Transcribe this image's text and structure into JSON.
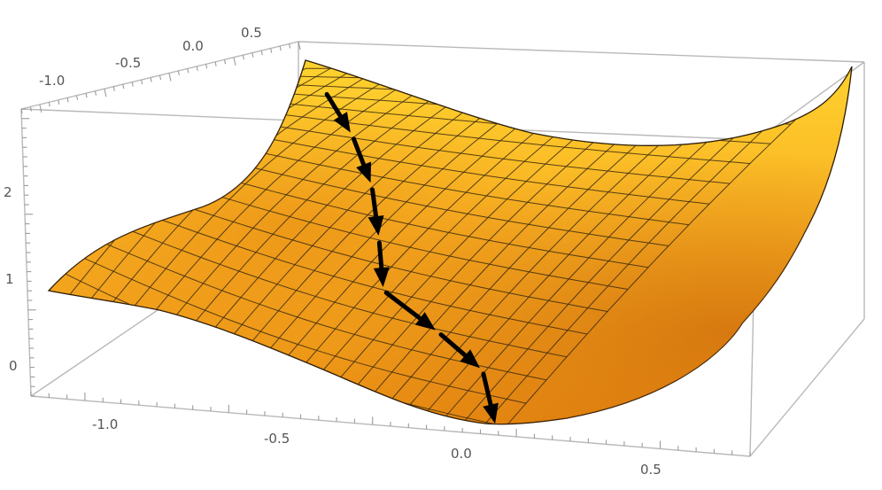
{
  "chart_data": {
    "type": "surface",
    "title": "",
    "xlabel": "",
    "ylabel": "",
    "zlabel": "",
    "x_ticks": [
      "-1.0",
      "-0.5",
      "0.0",
      "0.5"
    ],
    "y_ticks": [
      "-1.0",
      "-0.5",
      "0.0",
      "0.5"
    ],
    "z_ticks": [
      "0",
      "1",
      "2"
    ],
    "surface_color": "#f7a01e",
    "surface_highlight_color": "#ffd22e",
    "mesh_color": "#3a2a10",
    "box_color": "#b9b9b9",
    "arrow_color": "#000000",
    "descent_path": {
      "description_points": 7,
      "steps": [
        {
          "x": -0.72,
          "y": 0.45,
          "z": 2.85
        },
        {
          "x": -0.58,
          "y": 0.38,
          "z": 2.35
        },
        {
          "x": -0.47,
          "y": 0.33,
          "z": 1.95
        },
        {
          "x": -0.38,
          "y": 0.28,
          "z": 1.55
        },
        {
          "x": -0.28,
          "y": 0.18,
          "z": 1.05
        },
        {
          "x": -0.12,
          "y": 0.06,
          "z": 0.55
        },
        {
          "x": 0.05,
          "y": 0.0,
          "z": 0.15
        }
      ]
    },
    "grid": true
  }
}
